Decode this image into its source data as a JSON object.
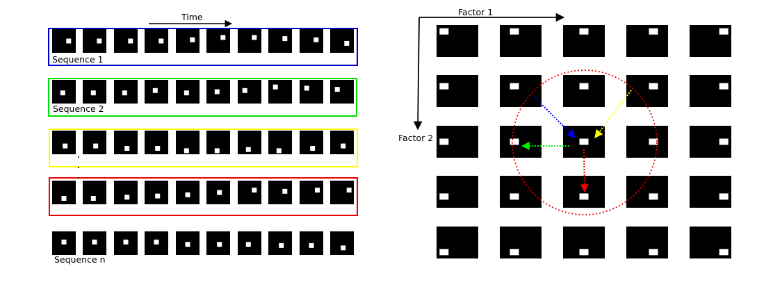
{
  "left_panel": {
    "time_label": "Time",
    "sequence_labels": [
      "Sequence 1",
      "Sequence 2",
      "",
      "",
      "Sequence n"
    ],
    "rows": [
      {
        "frame_color": "#0000cc",
        "dot_positions": [
          [
            0.7,
            0.5
          ],
          [
            0.7,
            0.5
          ],
          [
            0.7,
            0.5
          ],
          [
            0.7,
            0.5
          ],
          [
            0.7,
            0.45
          ],
          [
            0.7,
            0.35
          ],
          [
            0.7,
            0.35
          ],
          [
            0.7,
            0.4
          ],
          [
            0.7,
            0.45
          ],
          [
            0.7,
            0.6
          ]
        ]
      },
      {
        "frame_color": "#00dd00",
        "dot_positions": [
          [
            0.45,
            0.55
          ],
          [
            0.45,
            0.55
          ],
          [
            0.45,
            0.55
          ],
          [
            0.45,
            0.45
          ],
          [
            0.45,
            0.55
          ],
          [
            0.45,
            0.5
          ],
          [
            0.3,
            0.45
          ],
          [
            0.3,
            0.3
          ],
          [
            0.3,
            0.35
          ],
          [
            0.3,
            0.4
          ]
        ]
      },
      {
        "frame_color": "#ffff00",
        "dot_positions": [
          [
            0.55,
            0.65
          ],
          [
            0.55,
            0.65
          ],
          [
            0.55,
            0.75
          ],
          [
            0.55,
            0.75
          ],
          [
            0.45,
            0.85
          ],
          [
            0.45,
            0.85
          ],
          [
            0.45,
            0.8
          ],
          [
            0.45,
            0.85
          ],
          [
            0.55,
            0.75
          ],
          [
            0.55,
            0.65
          ]
        ]
      },
      {
        "frame_color": "#ee0000",
        "dot_positions": [
          [
            0.5,
            0.75
          ],
          [
            0.45,
            0.75
          ],
          [
            0.55,
            0.7
          ],
          [
            0.55,
            0.65
          ],
          [
            0.5,
            0.6
          ],
          [
            0.55,
            0.5
          ],
          [
            0.7,
            0.4
          ],
          [
            0.7,
            0.45
          ],
          [
            0.75,
            0.4
          ],
          [
            0.8,
            0.4
          ]
        ]
      },
      {
        "frame_color": "",
        "dot_positions": [
          [
            0.5,
            0.45
          ],
          [
            0.5,
            0.45
          ],
          [
            0.5,
            0.45
          ],
          [
            0.5,
            0.45
          ],
          [
            0.5,
            0.55
          ],
          [
            0.55,
            0.55
          ],
          [
            0.45,
            0.55
          ],
          [
            0.55,
            0.6
          ],
          [
            0.5,
            0.6
          ],
          [
            0.55,
            0.7
          ]
        ]
      }
    ]
  },
  "right_panel": {
    "factor1_label": "Factor 1",
    "factor2_label": "Factor 2",
    "dot_x_by_column": [
      0.18,
      0.35,
      0.5,
      0.65,
      0.82
    ],
    "dot_y_by_row": [
      0.2,
      0.35,
      0.5,
      0.65,
      0.8
    ],
    "highlight_circle_color": "#ee0000",
    "arrows": [
      {
        "name": "blue-arrow",
        "color": "#0000ee",
        "direction": "from-upper-left"
      },
      {
        "name": "yellow-arrow",
        "color": "#ffff00",
        "direction": "from-upper-right"
      },
      {
        "name": "green-arrow",
        "color": "#00ee00",
        "direction": "to-left"
      },
      {
        "name": "red-arrow",
        "color": "#ee0000",
        "direction": "down"
      }
    ]
  }
}
